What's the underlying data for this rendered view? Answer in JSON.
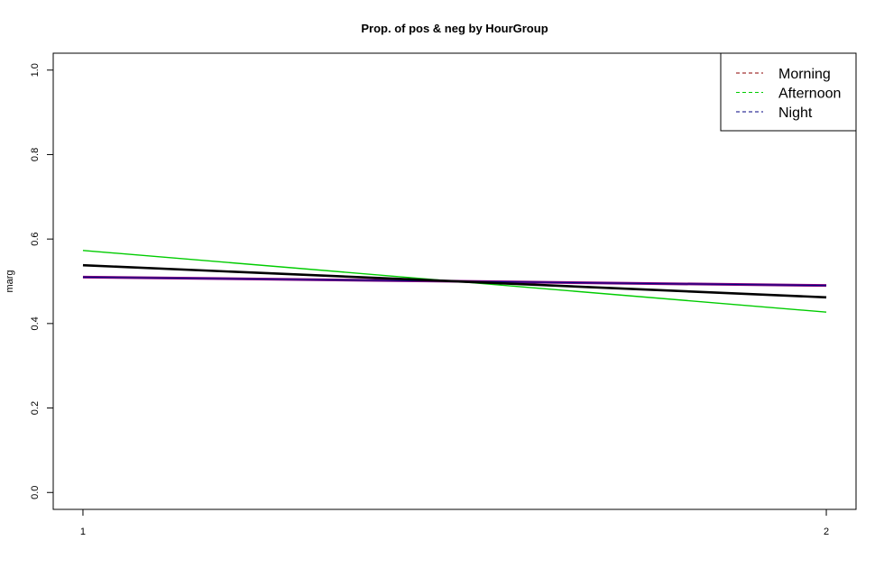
{
  "chart_data": {
    "type": "line",
    "title": "Prop. of pos & neg by HourGroup",
    "xlabel": "",
    "ylabel": "marg",
    "x": [
      1,
      2
    ],
    "xlim": [
      0.96,
      2.04
    ],
    "ylim": [
      -0.04,
      1.04
    ],
    "x_ticks": [
      1,
      2
    ],
    "y_ticks": [
      0.0,
      0.2,
      0.4,
      0.6,
      0.8,
      1.0
    ],
    "y_tick_labels": [
      "0.0",
      "0.2",
      "0.4",
      "0.6",
      "0.8",
      "1.0"
    ],
    "grid": false,
    "legend_position": "top-right",
    "legend": [
      {
        "name": "Morning",
        "color": "#8B0000",
        "style": "dashed"
      },
      {
        "name": "Afternoon",
        "color": "#00CC00",
        "style": "dashed"
      },
      {
        "name": "Night",
        "color": "#000080",
        "style": "dashed"
      }
    ],
    "lines": [
      {
        "color": "#800080",
        "values": [
          0.51,
          0.49
        ],
        "width": 3
      },
      {
        "color": "#00CC00",
        "values": [
          0.573,
          0.427
        ],
        "width": 1.4
      },
      {
        "color": "#000080",
        "values": [
          0.51,
          0.49
        ],
        "width": 1
      },
      {
        "color": "#000000",
        "values": [
          0.538,
          0.462
        ],
        "width": 2.6
      }
    ]
  }
}
